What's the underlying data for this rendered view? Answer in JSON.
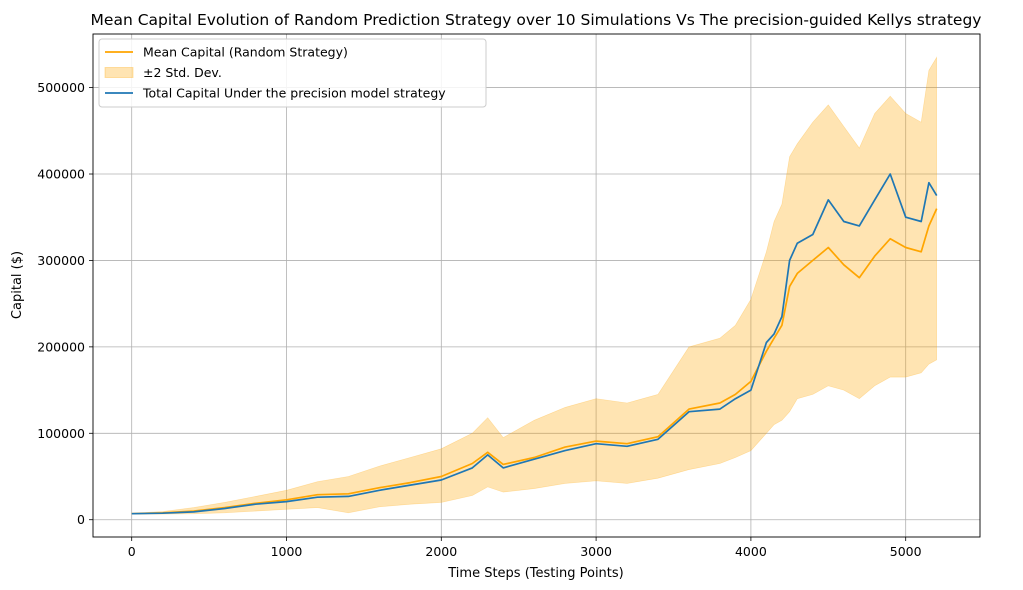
{
  "chart_data": {
    "type": "line",
    "title": "Mean Capital Evolution of Random Prediction Strategy over 10 Simulations Vs The precision-guided Kellys strategy",
    "xlabel": "Time Steps (Testing Points)",
    "ylabel": "Capital ($)",
    "xlim": [
      -250,
      5480
    ],
    "ylim": [
      -20000,
      562000
    ],
    "xticks": [
      0,
      1000,
      2000,
      3000,
      4000,
      5000
    ],
    "yticks": [
      0,
      100000,
      200000,
      300000,
      400000,
      500000
    ],
    "grid": true,
    "legend_position": "upper-left",
    "colors": {
      "mean": "#ffa500",
      "band": "#ffa500",
      "precision": "#1f77b4"
    },
    "legend": [
      {
        "label": "Mean Capital (Random Strategy)",
        "kind": "line",
        "color": "#ffa500"
      },
      {
        "label": "±2 Std. Dev.",
        "kind": "patch",
        "color": "#ffa500"
      },
      {
        "label": "Total Capital Under the precision model strategy",
        "kind": "line",
        "color": "#1f77b4"
      }
    ],
    "x": [
      0,
      200,
      400,
      600,
      800,
      1000,
      1200,
      1400,
      1600,
      1800,
      2000,
      2200,
      2300,
      2400,
      2600,
      2800,
      3000,
      3200,
      3400,
      3600,
      3800,
      3900,
      4000,
      4100,
      4150,
      4200,
      4250,
      4300,
      4400,
      4500,
      4600,
      4700,
      4800,
      4900,
      5000,
      5100,
      5150,
      5200
    ],
    "series": [
      {
        "name": "Mean Capital (Random Strategy)",
        "values": [
          7000,
          8000,
          10000,
          14000,
          19000,
          23000,
          29000,
          30000,
          37000,
          43000,
          50000,
          65000,
          78000,
          64000,
          72000,
          84000,
          91000,
          88000,
          96000,
          128000,
          135000,
          145000,
          160000,
          195000,
          210000,
          225000,
          270000,
          285000,
          300000,
          315000,
          295000,
          280000,
          305000,
          325000,
          315000,
          310000,
          340000,
          360000
        ]
      },
      {
        "name": "Total Capital Under the precision model strategy",
        "values": [
          7000,
          7500,
          9000,
          13000,
          18000,
          21000,
          26000,
          27000,
          34000,
          40000,
          46000,
          60000,
          75000,
          60000,
          70000,
          80000,
          88000,
          85000,
          93000,
          125000,
          128000,
          140000,
          150000,
          205000,
          215000,
          235000,
          300000,
          320000,
          330000,
          370000,
          345000,
          340000,
          370000,
          400000,
          350000,
          345000,
          390000,
          375000
        ]
      },
      {
        "name": "±2 Std. Dev.",
        "lower": [
          6500,
          6500,
          6800,
          8000,
          10000,
          12000,
          14000,
          8000,
          15000,
          18000,
          20000,
          28000,
          38000,
          32000,
          36000,
          42000,
          45000,
          42000,
          48000,
          58000,
          65000,
          72000,
          80000,
          100000,
          110000,
          115000,
          125000,
          140000,
          145000,
          155000,
          150000,
          140000,
          155000,
          165000,
          165000,
          170000,
          180000,
          185000
        ],
        "upper": [
          7500,
          9500,
          14000,
          20000,
          27000,
          34000,
          44000,
          50000,
          62000,
          72000,
          82000,
          100000,
          118000,
          95000,
          115000,
          130000,
          140000,
          135000,
          145000,
          200000,
          210000,
          225000,
          255000,
          310000,
          345000,
          365000,
          420000,
          435000,
          460000,
          480000,
          455000,
          430000,
          470000,
          490000,
          470000,
          460000,
          520000,
          535000
        ]
      }
    ]
  }
}
